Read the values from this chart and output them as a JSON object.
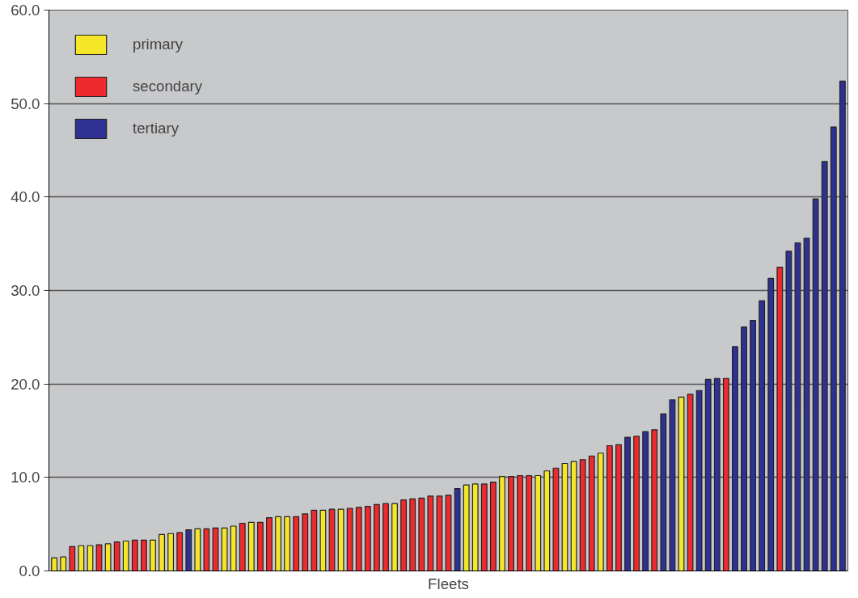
{
  "chart_data": {
    "type": "bar",
    "xlabel": "Fleets",
    "categories": [
      null,
      null,
      null,
      null,
      null,
      null,
      null,
      null,
      null,
      null,
      null,
      null,
      null,
      null,
      null,
      null,
      null,
      null,
      null,
      null,
      null,
      null,
      null,
      null,
      null,
      null,
      null,
      null,
      null,
      null,
      null,
      null,
      null,
      null,
      null,
      null,
      null,
      null,
      null,
      null,
      null,
      null,
      null,
      null,
      null,
      null,
      null,
      null,
      null,
      null,
      null,
      null,
      null,
      null,
      null,
      null,
      null,
      null,
      null,
      null,
      null,
      null,
      null,
      null,
      null,
      null,
      null,
      null,
      null,
      null,
      null,
      null,
      null,
      null,
      null,
      null,
      null,
      null,
      null,
      null,
      null,
      null,
      null,
      null,
      null,
      null,
      null,
      null,
      null
    ],
    "series": [
      {
        "name": "primary",
        "color": "#f5e62a",
        "values": [
          1.4,
          1.5,
          null,
          2.7,
          2.7,
          null,
          2.9,
          null,
          3.2,
          null,
          null,
          3.3,
          3.9,
          4.0,
          null,
          null,
          4.5,
          null,
          null,
          4.6,
          4.8,
          null,
          5.2,
          null,
          null,
          5.8,
          5.8,
          null,
          null,
          null,
          6.5,
          null,
          6.6,
          null,
          null,
          null,
          null,
          null,
          7.2,
          null,
          null,
          null,
          null,
          null,
          null,
          null,
          9.2,
          9.3,
          null,
          null,
          10.1,
          null,
          null,
          null,
          10.2,
          10.7,
          null,
          11.5,
          11.7,
          null,
          null,
          12.6,
          null,
          null,
          null,
          null,
          null,
          null,
          null,
          null,
          18.6,
          null,
          null,
          null,
          null,
          null,
          null,
          null,
          null,
          null,
          null,
          null,
          null,
          null,
          null,
          null,
          null,
          null,
          null
        ]
      },
      {
        "name": "secondary",
        "color": "#ee2a2e",
        "values": [
          null,
          null,
          2.6,
          null,
          null,
          2.8,
          null,
          3.1,
          null,
          3.3,
          3.3,
          null,
          null,
          null,
          4.1,
          null,
          null,
          4.5,
          4.6,
          null,
          null,
          5.1,
          null,
          5.2,
          5.7,
          null,
          null,
          5.8,
          6.1,
          6.5,
          null,
          6.6,
          null,
          6.7,
          6.8,
          6.9,
          7.1,
          7.2,
          null,
          7.6,
          7.7,
          7.8,
          8.0,
          8.0,
          8.1,
          null,
          null,
          null,
          9.3,
          9.5,
          null,
          10.1,
          10.2,
          10.2,
          null,
          null,
          11.0,
          null,
          null,
          11.9,
          12.3,
          null,
          13.4,
          13.5,
          null,
          14.4,
          null,
          15.1,
          null,
          null,
          null,
          18.9,
          null,
          null,
          null,
          20.6,
          null,
          null,
          null,
          null,
          null,
          32.5,
          null,
          null,
          null,
          null,
          null,
          null,
          null
        ]
      },
      {
        "name": "tertiary",
        "color": "#2e3192",
        "values": [
          null,
          null,
          null,
          null,
          null,
          null,
          null,
          null,
          null,
          null,
          null,
          null,
          null,
          null,
          null,
          4.4,
          null,
          null,
          null,
          null,
          null,
          null,
          null,
          null,
          null,
          null,
          null,
          null,
          null,
          null,
          null,
          null,
          null,
          null,
          null,
          null,
          null,
          null,
          null,
          null,
          null,
          null,
          null,
          null,
          null,
          8.8,
          null,
          null,
          null,
          null,
          null,
          null,
          null,
          null,
          null,
          null,
          null,
          null,
          null,
          null,
          null,
          null,
          null,
          null,
          14.3,
          null,
          14.9,
          null,
          16.8,
          18.3,
          null,
          null,
          19.3,
          20.5,
          20.6,
          null,
          24.0,
          26.1,
          26.8,
          28.9,
          31.3,
          null,
          34.2,
          35.1,
          35.6,
          39.8,
          43.8,
          47.5,
          52.4
        ]
      }
    ],
    "ylim": [
      0,
      60
    ],
    "yticks": [
      {
        "value": 0,
        "label": "0.0"
      },
      {
        "value": 10,
        "label": "10.0"
      },
      {
        "value": 20,
        "label": "20.0"
      },
      {
        "value": 30,
        "label": "30.0"
      },
      {
        "value": 40,
        "label": "40.0"
      },
      {
        "value": 50,
        "label": "50.0"
      },
      {
        "value": 60,
        "label": "60.0"
      }
    ],
    "grid": "y",
    "legend": "top left"
  }
}
